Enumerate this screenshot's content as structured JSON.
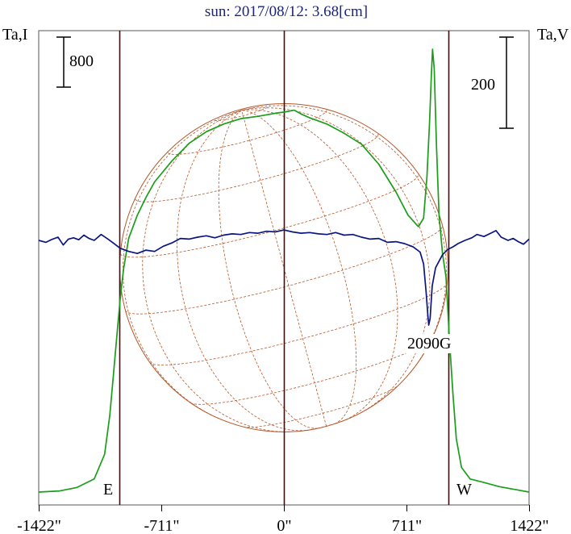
{
  "chart_data": {
    "type": "line",
    "title": "sun: 2017/08/12: 3.68[cm]",
    "left_axis_label": "Ta,I",
    "right_axis_label": "Ta,V",
    "x_tick_labels": [
      "-1422\"",
      "-711\"",
      "0\"",
      "711\"",
      "1422\""
    ],
    "x_ticks": [
      -1422,
      -711,
      0,
      711,
      1422
    ],
    "xlim": [
      -1422,
      1422
    ],
    "scale_bar_I": "800",
    "scale_bar_V": "200",
    "limb_markers": [
      {
        "label": "E",
        "x": -952
      },
      {
        "label": "W",
        "x": 952
      }
    ],
    "center_line_x": 0,
    "solar_disk": {
      "radius_arcsec": 952,
      "color": "#b5562a"
    },
    "annotation": {
      "text": "2090G",
      "x": 860
    },
    "series": [
      {
        "color": "#1a9e1a",
        "points": [
          [
            -1422,
            10
          ],
          [
            -1300,
            25
          ],
          [
            -1200,
            70
          ],
          [
            -1100,
            180
          ],
          [
            -1040,
            500
          ],
          [
            -1010,
            1000
          ],
          [
            -990,
            1500
          ],
          [
            -970,
            2000
          ],
          [
            -950,
            2500
          ],
          [
            -930,
            2900
          ],
          [
            -900,
            3300
          ],
          [
            -850,
            3600
          ],
          [
            -800,
            3830
          ],
          [
            -750,
            4030
          ],
          [
            -650,
            4300
          ],
          [
            -550,
            4530
          ],
          [
            -450,
            4680
          ],
          [
            -350,
            4780
          ],
          [
            -250,
            4850
          ],
          [
            -150,
            4880
          ],
          [
            -50,
            4920
          ],
          [
            0,
            4935
          ],
          [
            60,
            4960
          ],
          [
            100,
            4910
          ],
          [
            150,
            4860
          ],
          [
            250,
            4780
          ],
          [
            350,
            4660
          ],
          [
            450,
            4520
          ],
          [
            550,
            4260
          ],
          [
            650,
            3900
          ],
          [
            720,
            3600
          ],
          [
            780,
            3450
          ],
          [
            810,
            3560
          ],
          [
            830,
            4100
          ],
          [
            845,
            4800
          ],
          [
            855,
            5400
          ],
          [
            862,
            5750
          ],
          [
            872,
            5500
          ],
          [
            885,
            4500
          ],
          [
            900,
            3600
          ],
          [
            920,
            3100
          ],
          [
            940,
            2800
          ],
          [
            960,
            2000
          ],
          [
            980,
            1300
          ],
          [
            1000,
            700
          ],
          [
            1030,
            330
          ],
          [
            1080,
            180
          ],
          [
            1150,
            140
          ],
          [
            1250,
            80
          ],
          [
            1350,
            40
          ],
          [
            1422,
            10
          ]
        ]
      },
      {
        "color": "#0a1580",
        "points": [
          [
            -1422,
            0
          ],
          [
            -1380,
            -3
          ],
          [
            -1350,
            1
          ],
          [
            -1310,
            5
          ],
          [
            -1280,
            -7
          ],
          [
            -1250,
            2
          ],
          [
            -1220,
            4
          ],
          [
            -1190,
            1
          ],
          [
            -1160,
            8
          ],
          [
            -1130,
            3
          ],
          [
            -1100,
            0
          ],
          [
            -1060,
            9
          ],
          [
            -1020,
            2
          ],
          [
            -990,
            -4
          ],
          [
            -950,
            -12
          ],
          [
            -900,
            -17
          ],
          [
            -850,
            -20
          ],
          [
            -800,
            -15
          ],
          [
            -750,
            -17
          ],
          [
            -700,
            -9
          ],
          [
            -650,
            -4
          ],
          [
            -600,
            3
          ],
          [
            -550,
            2
          ],
          [
            -500,
            5
          ],
          [
            -450,
            7
          ],
          [
            -400,
            4
          ],
          [
            -350,
            8
          ],
          [
            -300,
            10
          ],
          [
            -250,
            9
          ],
          [
            -200,
            12
          ],
          [
            -150,
            11
          ],
          [
            -100,
            14
          ],
          [
            -50,
            13
          ],
          [
            0,
            16
          ],
          [
            50,
            13
          ],
          [
            100,
            11
          ],
          [
            150,
            12
          ],
          [
            200,
            10
          ],
          [
            250,
            9
          ],
          [
            300,
            12
          ],
          [
            350,
            8
          ],
          [
            400,
            9
          ],
          [
            450,
            5
          ],
          [
            500,
            2
          ],
          [
            550,
            3
          ],
          [
            600,
            -3
          ],
          [
            650,
            -2
          ],
          [
            700,
            -5
          ],
          [
            750,
            -10
          ],
          [
            790,
            -18
          ],
          [
            810,
            -36
          ],
          [
            825,
            -80
          ],
          [
            835,
            -115
          ],
          [
            840,
            -130
          ],
          [
            848,
            -120
          ],
          [
            860,
            -70
          ],
          [
            880,
            -42
          ],
          [
            900,
            -32
          ],
          [
            920,
            -22
          ],
          [
            950,
            -14
          ],
          [
            980,
            -10
          ],
          [
            1010,
            -5
          ],
          [
            1050,
            0
          ],
          [
            1090,
            4
          ],
          [
            1120,
            9
          ],
          [
            1160,
            6
          ],
          [
            1200,
            11
          ],
          [
            1230,
            15
          ],
          [
            1260,
            5
          ],
          [
            1300,
            0
          ],
          [
            1330,
            3
          ],
          [
            1360,
            -2
          ],
          [
            1390,
            -6
          ],
          [
            1422,
            2
          ]
        ]
      }
    ]
  }
}
